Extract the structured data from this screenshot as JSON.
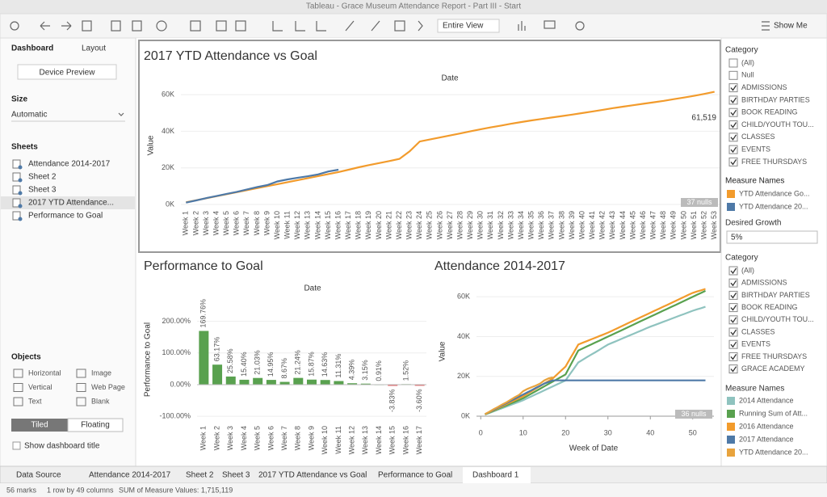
{
  "window": {
    "title": "Tableau - Grace Museum Attendance Report - Part III - Start"
  },
  "toolbar": {
    "fit": "Entire View",
    "show_me": "Show Me"
  },
  "left_panel": {
    "tabs": [
      "Dashboard",
      "Layout"
    ],
    "device_preview": "Device Preview",
    "size_title": "Size",
    "size_value": "Automatic",
    "sheets_title": "Sheets",
    "sheets": [
      "Attendance 2014-2017",
      "Sheet 2",
      "Sheet 3",
      "2017 YTD Attendance...",
      "Performance to Goal"
    ],
    "objects_title": "Objects",
    "objects": [
      "Horizontal",
      "Image",
      "Vertical",
      "Web Page",
      "Text",
      "Blank"
    ],
    "modes": [
      "Tiled",
      "Floating"
    ],
    "show_title": "Show dashboard title"
  },
  "chart_data": [
    {
      "type": "line",
      "title": "2017 YTD Attendance vs Goal",
      "x_title": "Date",
      "y_title": "Value",
      "categories": [
        "Week 1",
        "Week 2",
        "Week 3",
        "Week 4",
        "Week 5",
        "Week 6",
        "Week 7",
        "Week 8",
        "Week 9",
        "Week 10",
        "Week 11",
        "Week 12",
        "Week 13",
        "Week 14",
        "Week 15",
        "Week 16",
        "Week 17",
        "Week 18",
        "Week 19",
        "Week 20",
        "Week 21",
        "Week 22",
        "Week 23",
        "Week 24",
        "Week 25",
        "Week 26",
        "Week 27",
        "Week 28",
        "Week 29",
        "Week 30",
        "Week 31",
        "Week 32",
        "Week 33",
        "Week 34",
        "Week 35",
        "Week 36",
        "Week 37",
        "Week 38",
        "Week 39",
        "Week 40",
        "Week 41",
        "Week 42",
        "Week 43",
        "Week 44",
        "Week 45",
        "Week 46",
        "Week 47",
        "Week 48",
        "Week 49",
        "Week 50",
        "Week 51",
        "Week 52",
        "Week 53"
      ],
      "ylim": [
        0,
        64000
      ],
      "yticks": [
        {
          "value": 0,
          "label": "0K"
        },
        {
          "value": 20000,
          "label": "20K"
        },
        {
          "value": 40000,
          "label": "40K"
        },
        {
          "value": 60000,
          "label": "60K"
        }
      ],
      "grid": true,
      "series": [
        {
          "name": "YTD Attendance Go...",
          "color": "#f29b2c",
          "values": [
            1200,
            2300,
            3400,
            4500,
            5600,
            6700,
            7800,
            8900,
            10000,
            11100,
            12200,
            13300,
            14400,
            15500,
            16600,
            17700,
            19000,
            20300,
            21500,
            22600,
            23700,
            24900,
            29000,
            34400,
            35500,
            36600,
            37700,
            38800,
            40000,
            41100,
            42100,
            43100,
            44100,
            45000,
            45900,
            46700,
            47500,
            48300,
            49100,
            49900,
            50800,
            51700,
            52600,
            53400,
            54200,
            55000,
            55800,
            56600,
            57500,
            58400,
            59300,
            60400,
            61519
          ]
        },
        {
          "name": "YTD Attendance 20...",
          "color": "#4e79a7",
          "values": [
            1000,
            2200,
            3500,
            4600,
            5800,
            6900,
            8200,
            9500,
            10600,
            12600,
            13700,
            14600,
            15400,
            16400,
            18000,
            19000,
            null,
            null,
            null,
            null,
            null,
            null,
            null,
            null,
            null,
            null,
            null,
            null,
            null,
            null,
            null,
            null,
            null,
            null,
            null,
            null,
            null,
            null,
            null,
            null,
            null,
            null,
            null,
            null,
            null,
            null,
            null,
            null,
            null,
            null,
            null,
            null,
            null
          ]
        }
      ],
      "end_label": "61,519",
      "nulls_label": "37 nulls"
    },
    {
      "type": "bar",
      "title": "Performance to Goal",
      "x_title": "Date",
      "y_title": "Performance to Goal",
      "categories": [
        "Week 1",
        "Week 2",
        "Week 3",
        "Week 4",
        "Week 5",
        "Week 6",
        "Week 7",
        "Week 8",
        "Week 9",
        "Week 10",
        "Week 11",
        "Week 12",
        "Week 13",
        "Week 14",
        "Week 15",
        "Week 16",
        "Week 17"
      ],
      "values": [
        169.76,
        63.17,
        25.58,
        15.4,
        21.03,
        14.95,
        8.67,
        21.24,
        15.87,
        14.63,
        11.31,
        4.39,
        3.15,
        0.91,
        -3.83,
        1.52,
        -3.6
      ],
      "value_labels": [
        "169.76%",
        "63.17%",
        "25.58%",
        "15.40%",
        "21.03%",
        "14.95%",
        "8.67%",
        "21.24%",
        "15.87%",
        "14.63%",
        "11.31%",
        "4.39%",
        "3.15%",
        "0.91%",
        "-3.83%",
        "1.52%",
        "-3.60%"
      ],
      "color": "#59a14f",
      "negative_color": "#e15759",
      "ylim": [
        -110,
        240
      ],
      "yticks": [
        {
          "value": -100,
          "label": "-100.00%"
        },
        {
          "value": 0,
          "label": "0.00%"
        },
        {
          "value": 100,
          "label": "100.00%"
        },
        {
          "value": 200,
          "label": "200.00%"
        }
      ],
      "grid": true
    },
    {
      "type": "line",
      "title": "Attendance 2014-2017",
      "x_title": "Week of Date",
      "y_title": "Value",
      "x": [
        1,
        2,
        3,
        4,
        5,
        6,
        7,
        8,
        9,
        10,
        11,
        12,
        13,
        14,
        15,
        16,
        17,
        18,
        19,
        20,
        21,
        22,
        23,
        24,
        25,
        26,
        27,
        28,
        29,
        30,
        31,
        32,
        33,
        34,
        35,
        36,
        37,
        38,
        39,
        40,
        41,
        42,
        43,
        44,
        45,
        46,
        47,
        48,
        49,
        50,
        51,
        52,
        53
      ],
      "xlim": [
        -1,
        55
      ],
      "xticks": [
        0,
        10,
        20,
        30,
        40,
        50
      ],
      "ylim": [
        0,
        65000
      ],
      "yticks": [
        {
          "value": 0,
          "label": "0K"
        },
        {
          "value": 20000,
          "label": "20K"
        },
        {
          "value": 40000,
          "label": "40K"
        },
        {
          "value": 60000,
          "label": "60K"
        }
      ],
      "grid": true,
      "series": [
        {
          "name": "2014 Attendance",
          "color": "#8fc3bf",
          "values": [
            800,
            1600,
            2400,
            3200,
            4000,
            4800,
            5600,
            6400,
            7200,
            8000,
            9000,
            10000,
            11000,
            12000,
            13000,
            14000,
            15000,
            16000,
            17000,
            18000,
            21000,
            24000,
            27000,
            28300,
            29600,
            30900,
            32100,
            33400,
            34700,
            36000,
            36900,
            37800,
            38700,
            39600,
            40500,
            41400,
            42300,
            43200,
            44100,
            45000,
            45800,
            46600,
            47400,
            48200,
            49000,
            49800,
            50600,
            51400,
            52200,
            53000,
            53700,
            54300,
            55000
          ]
        },
        {
          "name": "Running Sum of Att...",
          "color": "#59a14f",
          "values": [
            900,
            1800,
            2700,
            3600,
            4500,
            5400,
            6300,
            7200,
            8100,
            9000,
            10200,
            11400,
            12600,
            13800,
            15000,
            16200,
            17400,
            18600,
            19800,
            21000,
            25000,
            29000,
            33000,
            34000,
            35000,
            36000,
            37000,
            38000,
            39000,
            40000,
            41000,
            42000,
            43000,
            44000,
            45000,
            46000,
            47000,
            48000,
            49000,
            50000,
            51000,
            52000,
            53000,
            54000,
            55000,
            56000,
            57000,
            58000,
            59000,
            60000,
            61000,
            62000,
            63000
          ]
        },
        {
          "name": "2016 Attendance",
          "color": "#f29b2c",
          "values": [
            1000,
            2000,
            3000,
            4000,
            5000,
            6000,
            7000,
            8000,
            9000,
            10000,
            11300,
            12600,
            13900,
            15100,
            16400,
            17700,
            19000,
            21000,
            23000,
            25000,
            28700,
            32300,
            36000,
            36900,
            37700,
            38600,
            39400,
            40300,
            41100,
            42000,
            43000,
            44000,
            45000,
            46000,
            47000,
            48000,
            49000,
            50000,
            51000,
            52000,
            53000,
            54000,
            55000,
            56000,
            57000,
            58000,
            59000,
            60000,
            61000,
            62000,
            62700,
            63300,
            64000
          ]
        },
        {
          "name": "2017 Attendance",
          "color": "#4e79a7",
          "values": [
            1000,
            2100,
            3200,
            4300,
            5400,
            6500,
            7600,
            8700,
            9800,
            10900,
            12000,
            13100,
            14200,
            15300,
            16400,
            17200,
            18000,
            18000,
            18000,
            18000,
            18000,
            18000,
            18000,
            18000,
            18000,
            18000,
            18000,
            18000,
            18000,
            18000,
            18000,
            18000,
            18000,
            18000,
            18000,
            18000,
            18000,
            18000,
            18000,
            18000,
            18000,
            18000,
            18000,
            18000,
            18000,
            18000,
            18000,
            18000,
            18000,
            18000,
            18000,
            18000,
            18000
          ]
        },
        {
          "name": "YTD Attendance 20...",
          "color": "#e8a33d",
          "values": [
            1000,
            2200,
            3500,
            4600,
            5800,
            6900,
            8200,
            9500,
            10600,
            12600,
            13700,
            14600,
            15400,
            16400,
            18000,
            19000,
            19500,
            null,
            null,
            null,
            null,
            null,
            null,
            null,
            null,
            null,
            null,
            null,
            null,
            null,
            null,
            null,
            null,
            null,
            null,
            null,
            null,
            null,
            null,
            null,
            null,
            null,
            null,
            null,
            null,
            null,
            null,
            null,
            null,
            null,
            null,
            null,
            null
          ]
        }
      ],
      "nulls_label": "36 nulls"
    }
  ],
  "right_panel": {
    "filter1": {
      "title": "Category",
      "items": [
        {
          "label": "(All)",
          "checked": false
        },
        {
          "label": "Null",
          "checked": false
        },
        {
          "label": "ADMISSIONS",
          "checked": true
        },
        {
          "label": "BIRTHDAY PARTIES",
          "checked": true
        },
        {
          "label": "BOOK READING",
          "checked": true
        },
        {
          "label": "CHILD/YOUTH TOU...",
          "checked": true
        },
        {
          "label": "CLASSES",
          "checked": true
        },
        {
          "label": "EVENTS",
          "checked": true
        },
        {
          "label": "FREE THURSDAYS",
          "checked": true
        }
      ]
    },
    "legend1_title": "Measure Names",
    "growth_title": "Desired Growth",
    "growth_value": "5%",
    "filter2": {
      "title": "Category",
      "items": [
        {
          "label": "(All)",
          "checked": true
        },
        {
          "label": "ADMISSIONS",
          "checked": true
        },
        {
          "label": "BIRTHDAY PARTIES",
          "checked": true
        },
        {
          "label": "BOOK READING",
          "checked": true
        },
        {
          "label": "CHILD/YOUTH TOU...",
          "checked": true
        },
        {
          "label": "CLASSES",
          "checked": true
        },
        {
          "label": "EVENTS",
          "checked": true
        },
        {
          "label": "FREE THURSDAYS",
          "checked": true
        },
        {
          "label": "GRACE ACADEMY",
          "checked": true
        }
      ]
    },
    "legend2_title": "Measure Names"
  },
  "tabs": [
    "Data Source",
    "Attendance 2014-2017",
    "Sheet 2",
    "Sheet 3",
    "2017 YTD Attendance vs Goal",
    "Performance to Goal",
    "Dashboard 1"
  ],
  "status": [
    "56 marks",
    "1 row by 49 columns",
    "SUM of Measure Values: 1,715,119"
  ]
}
